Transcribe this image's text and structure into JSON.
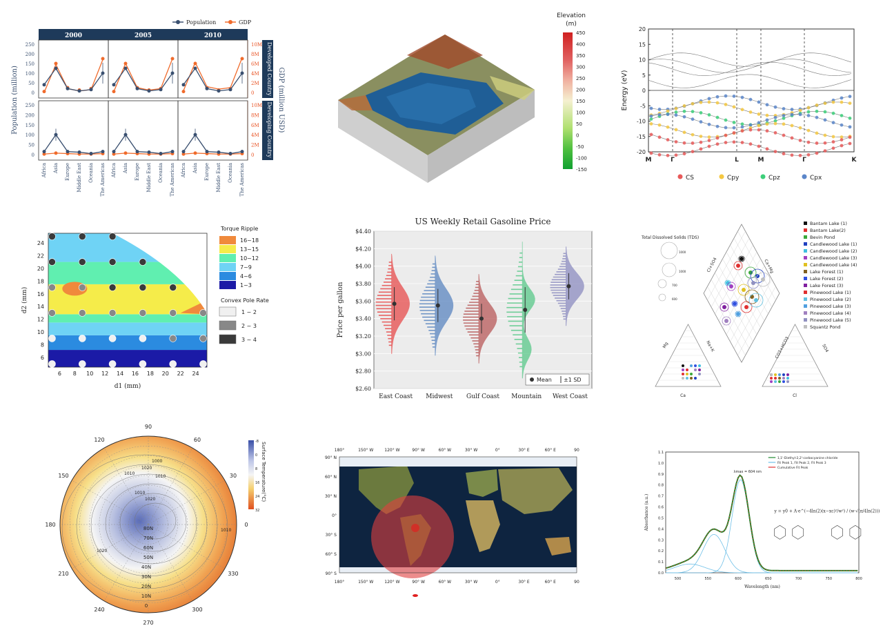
{
  "panels": {
    "p1": {
      "legend": [
        "Population",
        "GDP"
      ],
      "years": [
        "2000",
        "2005",
        "2010"
      ],
      "ylabel_left": "Population (million)",
      "ylabel_right": "GDP (million USD)",
      "row_labels": [
        "Developed Country",
        "Developing Country"
      ],
      "pop_ticks": [
        "0",
        "50",
        "100",
        "150",
        "200",
        "250"
      ],
      "gdp_ticks": [
        "0",
        "2M",
        "4M",
        "6M",
        "8M",
        "10M"
      ],
      "regions": [
        "Africa",
        "Asia",
        "Europe",
        "Middle East",
        "Oceania",
        "The Americas"
      ]
    },
    "p2": {
      "colorbar_title": "Elevation\n(m)",
      "colorbar_ticks": [
        "450",
        "400",
        "350",
        "300",
        "250",
        "200",
        "150",
        "100",
        "50",
        "0",
        "-50",
        "-100",
        "-150"
      ]
    },
    "p3": {
      "ylabel": "Energy (eV)",
      "yticks": [
        "20",
        "15",
        "10",
        "5",
        "0",
        "-5",
        "-10",
        "-15",
        "-20"
      ],
      "kpoints": [
        "M",
        "Γ",
        "L",
        "M",
        "Γ",
        "K"
      ],
      "legend": [
        "CS",
        "Cpy",
        "Cpz",
        "Cpx"
      ],
      "legend_colors": [
        "#e85a5a",
        "#f5c842",
        "#3dcf7a",
        "#5b86c9"
      ]
    },
    "p4": {
      "xlabel": "d1 (mm)",
      "ylabel": "d2 (mm)",
      "xticks": [
        "6",
        "8",
        "10",
        "12",
        "14",
        "16",
        "18",
        "20",
        "22",
        "24"
      ],
      "yticks": [
        "6",
        "8",
        "10",
        "12",
        "14",
        "16",
        "18",
        "20",
        "22",
        "24"
      ],
      "legend1_title": "Torque Ripple",
      "legend1": [
        "16~18",
        "13~15",
        "10~12",
        "7~9",
        "4~6",
        "1~3"
      ],
      "legend1_colors": [
        "#f08a3c",
        "#f5ec4a",
        "#60efb0",
        "#6fd3f5",
        "#2b8be0",
        "#1b1aa6"
      ],
      "legend2_title": "Convex Pole Rate",
      "legend2": [
        "1 ~ 2",
        "2 ~ 3",
        "3 ~ 4"
      ],
      "legend2_colors": [
        "#f0f0f0",
        "#888888",
        "#3a3a3a"
      ]
    },
    "p5": {
      "chart_data": {
        "type": "violin",
        "title": "US Weekly Retail Gasoline Price",
        "ylabel": "Price per gallon",
        "categories": [
          "East Coast",
          "Midwest",
          "Gulf Coast",
          "Mountain",
          "West Coast"
        ],
        "means": [
          3.57,
          3.55,
          3.4,
          3.5,
          3.77
        ],
        "sd": [
          0.19,
          0.19,
          0.17,
          0.26,
          0.15
        ],
        "colors": [
          "#e74c4c",
          "#5b86c0",
          "#b85a5a",
          "#5ac98a",
          "#8c8cc0"
        ],
        "yticks": [
          "$2.60",
          "$2.80",
          "$3.00",
          "$3.20",
          "$3.40",
          "$3.60",
          "$3.80",
          "$4.00",
          "$4.20",
          "$4.40"
        ],
        "ylim": [
          2.6,
          4.4
        ],
        "legend": [
          "Mean",
          "±1 SD"
        ]
      }
    },
    "p6": {
      "tds_title": "Total Dissolved Solids (TDS)",
      "tds_values": [
        "1000",
        "1000",
        "700",
        "600"
      ],
      "sites": [
        "Bantam Lake (1)",
        "Bantam Lake(2)",
        "Bevin Pond",
        "Candlewood Lake (1)",
        "Candlewood Lake (2)",
        "Candlewood Lake (3)",
        "Candlewood Lake (4)",
        "Lake Forest (1)",
        "Lake Forest (2)",
        "Lake Forest (3)",
        "Pinewood Lake (1)",
        "Pinewood Lake (2)",
        "Pinewood Lake (3)",
        "Pinewood Lake (4)",
        "Pinewood Lake (5)",
        "Squantz Pond"
      ],
      "site_colors": [
        "#111111",
        "#e03030",
        "#3aa83a",
        "#2040c0",
        "#40c0e0",
        "#a040c0",
        "#e0c020",
        "#806020",
        "#3050e0",
        "#8020a0",
        "#e03030",
        "#60c0e0",
        "#50a0e0",
        "#a080c0",
        "#9090c0",
        "#c0c0c0"
      ],
      "axis_labels": [
        "Ca+Mg",
        "Cl+SO4",
        "SO4",
        "CO3+HCO3",
        "Na+K",
        "Mg",
        "Ca",
        "Cl"
      ]
    },
    "p7": {
      "colorbar_title": "Surface Temperature(°C)",
      "colorbar_ticks": [
        "-8",
        "0",
        "8",
        "16",
        "24",
        "32"
      ],
      "angle_labels": [
        "90",
        "60",
        "30",
        "0",
        "330",
        "300",
        "270",
        "240",
        "210",
        "180",
        "150",
        "120"
      ],
      "lat_labels": [
        "80N",
        "70N",
        "60N",
        "50N",
        "40N",
        "30N",
        "20N",
        "10N",
        "0"
      ],
      "isobars": [
        "1010",
        "1020",
        "1010",
        "1000",
        "1010",
        "1020",
        "1020",
        "1010"
      ]
    },
    "p8": {
      "xticks": [
        "180°",
        "150° W",
        "120° W",
        "90° W",
        "60° W",
        "30° W",
        "0°",
        "30° E",
        "60° E",
        "90"
      ],
      "xticks_bottom": [
        "180°",
        "150° W",
        "120° W",
        "90° W",
        "60° W",
        "30° W",
        "0°",
        "30° E",
        "60° E",
        "90"
      ],
      "yticks": [
        "90° N",
        "60° N",
        "30° N",
        "0°",
        "30° S",
        "60° S",
        "90° S"
      ]
    },
    "p9": {
      "legend": [
        "1,1'-Diethyl-2,2'-carbocyanine chloride",
        "Fit Peak 1, Fit Peak 2, Fit Peak 3",
        "Cumulative Fit Peak"
      ],
      "peak_label": "λmax = 604 nm",
      "ylabel": "Absorbance (a.u.)",
      "xlabel": "Wavelength (nm)",
      "yticks": [
        "0.0",
        "0.1",
        "0.2",
        "0.3",
        "0.4",
        "0.5",
        "0.6",
        "0.7",
        "0.8",
        "0.9",
        "1.0",
        "1.1"
      ],
      "xticks": [
        "500",
        "550",
        "600",
        "650",
        "700",
        "750",
        "800"
      ],
      "formula": "y = y0 + A·e^(−4ln(2)(x−xc)²/w²) / (w·√(π/4ln(2)))"
    }
  }
}
